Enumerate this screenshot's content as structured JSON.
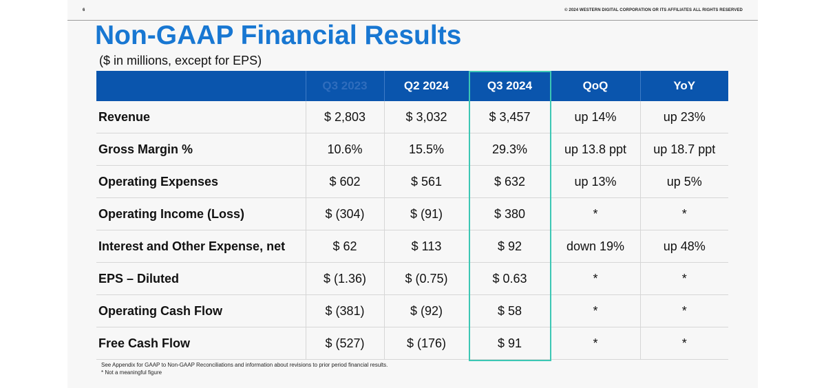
{
  "page_number": "6",
  "copyright": "© 2024 WESTERN DIGITAL CORPORATION OR ITS AFFILIATES ALL RIGHTS RESERVED",
  "title": "Non-GAAP Financial Results",
  "subtitle": "($ in millions, except for EPS)",
  "table": {
    "headers": [
      "",
      "Q3 2023",
      "Q2 2024",
      "Q3 2024",
      "QoQ",
      "YoY"
    ],
    "highlighted_column": "Q3 2024",
    "rows": [
      [
        "Revenue",
        "$ 2,803",
        "$ 3,032",
        "$ 3,457",
        "up 14%",
        "up 23%"
      ],
      [
        "Gross Margin %",
        "10.6%",
        "15.5%",
        "29.3%",
        "up 13.8 ppt",
        "up 18.7 ppt"
      ],
      [
        "Operating Expenses",
        "$ 602",
        "$ 561",
        "$ 632",
        "up 13%",
        "up 5%"
      ],
      [
        "Operating Income (Loss)",
        "$ (304)",
        "$ (91)",
        "$ 380",
        "*",
        "*"
      ],
      [
        "Interest and Other Expense, net",
        "$ 62",
        "$ 113",
        "$ 92",
        "down 19%",
        "up 48%"
      ],
      [
        "EPS – Diluted",
        "$ (1.36)",
        "$ (0.75)",
        "$ 0.63",
        "*",
        "*"
      ],
      [
        "Operating Cash Flow",
        "$ (381)",
        "$ (92)",
        "$ 58",
        "*",
        "*"
      ],
      [
        "Free Cash Flow",
        "$ (527)",
        "$ (176)",
        "$ 91",
        "*",
        "*"
      ]
    ]
  },
  "footnotes": [
    "See Appendix for GAAP to Non-GAAP Reconciliations and information about revisions to prior period financial results.",
    "* Not a meaningful figure"
  ],
  "colors": {
    "title": "#1877d2",
    "header_bg": "#0a55ad",
    "highlight": "#3cc7b4"
  }
}
